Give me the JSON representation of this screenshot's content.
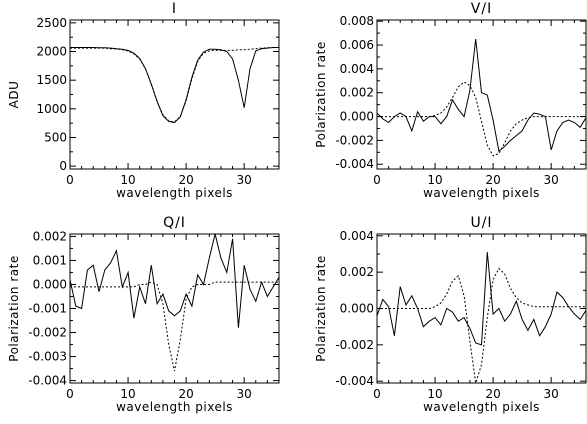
{
  "chart_data": [
    {
      "type": "line",
      "title": "I",
      "xlabel": "wavelength pixels",
      "ylabel": "ADU",
      "xlim": [
        0,
        36
      ],
      "ylim": [
        -50,
        2550
      ],
      "xticks": [
        0,
        10,
        20,
        30
      ],
      "yticks": [
        0,
        500,
        1000,
        1500,
        2000,
        2500
      ],
      "ytick_labels": [
        "0",
        "500",
        "1000",
        "1500",
        "2000",
        "2500"
      ],
      "series": [
        {
          "style": "solid",
          "x": [
            0,
            1,
            2,
            3,
            4,
            5,
            6,
            7,
            8,
            9,
            10,
            11,
            12,
            13,
            14,
            15,
            16,
            17,
            18,
            19,
            20,
            21,
            22,
            23,
            24,
            25,
            26,
            27,
            28,
            29,
            30,
            31,
            32,
            33,
            34,
            35,
            36
          ],
          "y": [
            2070,
            2070,
            2070,
            2070,
            2070,
            2065,
            2065,
            2060,
            2050,
            2040,
            2020,
            1970,
            1880,
            1700,
            1430,
            1130,
            880,
            780,
            760,
            860,
            1160,
            1550,
            1850,
            1990,
            2040,
            2040,
            2030,
            2000,
            1870,
            1500,
            1020,
            1700,
            2010,
            2050,
            2060,
            2070,
            2070
          ]
        },
        {
          "style": "dashed",
          "x": [
            0,
            1,
            2,
            3,
            4,
            5,
            6,
            7,
            8,
            9,
            10,
            11,
            12,
            13,
            14,
            15,
            16,
            17,
            18,
            19,
            20,
            21,
            22,
            23,
            24,
            25,
            26,
            27,
            28,
            29,
            30,
            31,
            32,
            33,
            34,
            35,
            36
          ],
          "y": [
            2060,
            2060,
            2060,
            2060,
            2060,
            2060,
            2060,
            2050,
            2045,
            2030,
            2010,
            1960,
            1870,
            1700,
            1430,
            1130,
            900,
            790,
            770,
            870,
            1140,
            1520,
            1830,
            1970,
            2010,
            2020,
            2020,
            2020,
            2020,
            2030,
            2030,
            2040,
            2050,
            2060,
            2065,
            2070,
            2070
          ]
        }
      ]
    },
    {
      "type": "line",
      "title": "V/I",
      "xlabel": "wavelength pixels",
      "ylabel": "Polarization rate",
      "xlim": [
        0,
        36
      ],
      "ylim": [
        -0.0044,
        0.0081
      ],
      "xticks": [
        0,
        10,
        20,
        30
      ],
      "yticks": [
        -0.004,
        -0.002,
        0.0,
        0.002,
        0.004,
        0.006,
        0.008
      ],
      "ytick_labels": [
        "-0.004",
        "-0.002",
        "0.000",
        "0.002",
        "0.004",
        "0.006",
        "0.008"
      ],
      "series": [
        {
          "style": "solid",
          "x": [
            0,
            1,
            2,
            3,
            4,
            5,
            6,
            7,
            8,
            9,
            10,
            11,
            12,
            13,
            14,
            15,
            16,
            17,
            18,
            19,
            20,
            21,
            22,
            23,
            24,
            25,
            26,
            27,
            28,
            29,
            30,
            31,
            32,
            33,
            34,
            35,
            36
          ],
          "y": [
            0.0003,
            -0.0002,
            -0.0005,
            0.0,
            0.0003,
            0.0,
            -0.0012,
            0.0004,
            -0.0004,
            0.0,
            0.0,
            -0.0006,
            0.0,
            0.0014,
            0.0006,
            0.0,
            0.0022,
            0.0065,
            0.002,
            0.0018,
            -0.0003,
            -0.0029,
            -0.0025,
            -0.002,
            -0.0016,
            -0.0012,
            -0.0003,
            0.0003,
            0.0002,
            0.0,
            -0.0028,
            -0.0012,
            -0.0005,
            -0.0003,
            -0.0005,
            -0.0009,
            -0.0001
          ]
        },
        {
          "style": "dashed",
          "x": [
            0,
            1,
            2,
            3,
            4,
            5,
            6,
            7,
            8,
            9,
            10,
            11,
            12,
            13,
            14,
            15,
            16,
            17,
            18,
            19,
            20,
            21,
            22,
            23,
            24,
            25,
            26,
            27,
            28,
            29,
            30,
            31,
            32,
            33,
            34,
            35,
            36
          ],
          "y": [
            0.0,
            0.0,
            0.0,
            0.0,
            0.0,
            0.0,
            0.0,
            0.0,
            0.0,
            0.0,
            0.0001,
            0.0003,
            0.0008,
            0.0016,
            0.0025,
            0.0029,
            0.0026,
            0.0016,
            -0.0004,
            -0.0024,
            -0.0033,
            -0.0031,
            -0.0022,
            -0.0012,
            -0.0006,
            -0.0003,
            -0.0001,
            0.0,
            0.0,
            0.0,
            0.0,
            0.0,
            0.0,
            0.0,
            0.0,
            0.0,
            0.0
          ]
        }
      ]
    },
    {
      "type": "line",
      "title": "Q/I",
      "xlabel": "wavelength pixels",
      "ylabel": "Polarization rate",
      "xlim": [
        0,
        36
      ],
      "ylim": [
        -0.0041,
        0.0021
      ],
      "xticks": [
        0,
        10,
        20,
        30
      ],
      "yticks": [
        -0.004,
        -0.003,
        -0.002,
        -0.001,
        0.0,
        0.001,
        0.002
      ],
      "ytick_labels": [
        "-0.004",
        "-0.003",
        "-0.002",
        "-0.001",
        "0.000",
        "0.001",
        "0.002"
      ],
      "series": [
        {
          "style": "solid",
          "x": [
            0,
            1,
            2,
            3,
            4,
            5,
            6,
            7,
            8,
            9,
            10,
            11,
            12,
            13,
            14,
            15,
            16,
            17,
            18,
            19,
            20,
            21,
            22,
            23,
            24,
            25,
            26,
            27,
            28,
            29,
            30,
            31,
            32,
            33,
            34,
            35,
            36
          ],
          "y": [
            0.0002,
            -0.0009,
            -0.001,
            0.0006,
            0.0008,
            -0.0003,
            0.0006,
            0.0009,
            0.0014,
            -0.0001,
            0.0005,
            -0.0014,
            -0.0001,
            -0.0008,
            0.0008,
            -0.0008,
            -0.0004,
            -0.0011,
            -0.0013,
            -0.0011,
            -0.0004,
            -0.0009,
            0.0004,
            0.0,
            0.0011,
            0.0021,
            0.0011,
            0.0005,
            0.0019,
            -0.0018,
            0.0008,
            -0.0002,
            -0.0007,
            0.0001,
            -0.0005,
            -0.0001,
            0.0003
          ]
        },
        {
          "style": "dashed",
          "x": [
            0,
            1,
            2,
            3,
            4,
            5,
            6,
            7,
            8,
            9,
            10,
            11,
            12,
            13,
            14,
            15,
            16,
            17,
            18,
            19,
            20,
            21,
            22,
            23,
            24,
            25,
            26,
            27,
            28,
            29,
            30,
            31,
            32,
            33,
            34,
            35,
            36
          ],
          "y": [
            -0.0001,
            -0.0001,
            -0.0001,
            -0.0001,
            -0.0001,
            -0.0001,
            -0.0001,
            -0.0001,
            -0.0001,
            -0.0001,
            -0.0001,
            -0.0001,
            0.0,
            0.0,
            0.0001,
            0.0,
            -0.0008,
            -0.0025,
            -0.0036,
            -0.0023,
            -0.0006,
            -0.0001,
            0.0,
            0.0,
            0.0,
            0.0001,
            0.0001,
            0.0001,
            0.0001,
            0.0001,
            0.0001,
            0.0001,
            0.0001,
            0.0001,
            0.0001,
            0.0001,
            0.0001
          ]
        }
      ]
    },
    {
      "type": "line",
      "title": "U/I",
      "xlabel": "wavelength pixels",
      "ylabel": "Polarization rate",
      "xlim": [
        0,
        36
      ],
      "ylim": [
        -0.0041,
        0.0041
      ],
      "xticks": [
        0,
        10,
        20,
        30
      ],
      "yticks": [
        -0.004,
        -0.002,
        0.0,
        0.002,
        0.004
      ],
      "ytick_labels": [
        "-0.004",
        "-0.002",
        "0.000",
        "0.002",
        "0.004"
      ],
      "series": [
        {
          "style": "solid",
          "x": [
            0,
            1,
            2,
            3,
            4,
            5,
            6,
            7,
            8,
            9,
            10,
            11,
            12,
            13,
            14,
            15,
            16,
            17,
            18,
            19,
            20,
            21,
            22,
            23,
            24,
            25,
            26,
            27,
            28,
            29,
            30,
            31,
            32,
            33,
            34,
            35,
            36
          ],
          "y": [
            -0.0004,
            0.0005,
            0.0001,
            -0.0015,
            0.0012,
            0.0002,
            0.0007,
            0.0,
            -0.001,
            -0.0007,
            -0.0005,
            -0.0009,
            0.0,
            -0.0002,
            -0.0007,
            -0.0005,
            -0.0011,
            -0.0019,
            -0.002,
            0.0031,
            -0.0003,
            0.0,
            -0.0007,
            -0.0003,
            0.0004,
            -0.0006,
            -0.0012,
            -0.0006,
            -0.0015,
            -0.001,
            -0.0003,
            0.0009,
            0.0006,
            0.0001,
            -0.0003,
            -0.0006,
            -0.0001
          ]
        },
        {
          "style": "dashed",
          "x": [
            0,
            1,
            2,
            3,
            4,
            5,
            6,
            7,
            8,
            9,
            10,
            11,
            12,
            13,
            14,
            15,
            16,
            17,
            18,
            19,
            20,
            21,
            22,
            23,
            24,
            25,
            26,
            27,
            28,
            29,
            30,
            31,
            32,
            33,
            34,
            35,
            36
          ],
          "y": [
            0.0,
            0.0,
            0.0,
            0.0,
            0.0,
            0.0,
            0.0,
            0.0,
            0.0,
            0.0,
            0.0001,
            0.0003,
            0.0008,
            0.0015,
            0.0018,
            0.0007,
            -0.0018,
            -0.0041,
            -0.0031,
            -0.0005,
            0.0016,
            0.0022,
            0.0019,
            0.0011,
            0.0006,
            0.0003,
            0.0002,
            0.0001,
            0.0001,
            0.0001,
            0.0001,
            0.0001,
            0.0001,
            0.0001,
            0.0001,
            0.0001,
            0.0001
          ]
        }
      ]
    }
  ]
}
